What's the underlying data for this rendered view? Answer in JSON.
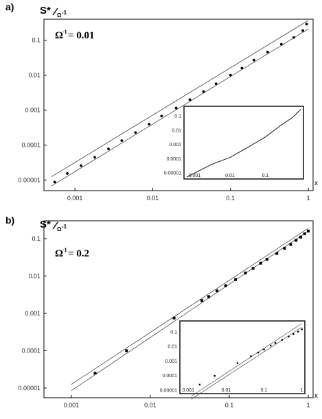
{
  "chart_data": [
    {
      "type": "scatter",
      "panel_label": "a)",
      "ylabel": "S*",
      "ylabel_sub": "Ω",
      "ylabel_sup": "-1",
      "annotation": "= 0.01",
      "annotation_symbol": "Ω",
      "annotation_sup": "-1",
      "xlabel": "x",
      "x_scale": "log",
      "y_scale": "log",
      "xlim": [
        0.0004,
        1.15
      ],
      "ylim": [
        5e-06,
        0.4
      ],
      "xticks": [
        "0.001",
        "0.01",
        "0.1",
        "1"
      ],
      "yticks": [
        "0.00001",
        "0.0001",
        "0.001",
        "0.01",
        "0.1"
      ],
      "xtick_values": [
        0.001,
        0.01,
        0.1,
        1
      ],
      "ytick_values": [
        1e-05,
        0.0001,
        0.001,
        0.01,
        0.1
      ],
      "series": [
        {
          "points": [
            [
              0.00055,
              8.8e-06
            ],
            [
              0.0008,
              1.55e-05
            ],
            [
              0.0012,
              2.6e-05
            ],
            [
              0.0018,
              4.5e-05
            ],
            [
              0.0027,
              7.8e-05
            ],
            [
              0.004,
              0.000135
            ],
            [
              0.006,
              0.00023
            ],
            [
              0.009,
              0.0004
            ],
            [
              0.013,
              0.00068
            ],
            [
              0.02,
              0.00115
            ],
            [
              0.03,
              0.002
            ],
            [
              0.045,
              0.0034
            ],
            [
              0.065,
              0.0057
            ],
            [
              0.1,
              0.01
            ],
            [
              0.14,
              0.016
            ],
            [
              0.2,
              0.027
            ],
            [
              0.3,
              0.046
            ],
            [
              0.45,
              0.077
            ],
            [
              0.65,
              0.12
            ],
            [
              0.85,
              0.19
            ],
            [
              0.95,
              0.29
            ]
          ]
        }
      ],
      "reference_lines": [
        {
          "points": [
            [
              0.0005,
              1.25e-05
            ],
            [
              1,
              0.37
            ]
          ]
        },
        {
          "points": [
            [
              0.0005,
              6.8e-06
            ],
            [
              1,
              0.21
            ]
          ]
        }
      ],
      "inset": {
        "xticks": [
          "0.001",
          "0.01",
          "0.1"
        ],
        "yticks": [
          "0.00001",
          "0.0001",
          "0.001",
          "0.01",
          "0.1"
        ],
        "xtick_values": [
          0.001,
          0.01,
          0.1
        ],
        "ytick_values": [
          1e-05,
          0.0001,
          0.001,
          0.01,
          0.1
        ],
        "xlim": [
          0.0005,
          1.2
        ],
        "ylim": [
          4e-06,
          0.5
        ],
        "series": [
          {
            "points": [
              [
                0.0006,
                5.5e-06
              ],
              [
                0.001,
                1.05e-05
              ],
              [
                0.003,
                4.2e-05
              ],
              [
                0.01,
                0.00013
              ],
              [
                0.03,
                0.0006
              ],
              [
                0.1,
                0.0035
              ],
              [
                0.3,
                0.027
              ],
              [
                0.6,
                0.085
              ],
              [
                1,
                0.3
              ]
            ]
          }
        ]
      }
    },
    {
      "type": "scatter",
      "panel_label": "b)",
      "ylabel": "S*",
      "ylabel_sub": "Ω",
      "ylabel_sup": "-1",
      "annotation": "= 0.2",
      "annotation_symbol": "Ω",
      "annotation_sup": "-1",
      "xlabel": "x",
      "x_scale": "log",
      "y_scale": "log",
      "xlim": [
        0.00045,
        1.15
      ],
      "ylim": [
        5.5e-06,
        0.3
      ],
      "xticks": [
        "0.001",
        "0.01",
        "0.1",
        "1"
      ],
      "yticks": [
        "0.00001",
        "0.0001",
        "0.001",
        "0.01",
        "0.1"
      ],
      "xtick_values": [
        0.001,
        0.01,
        0.1,
        1
      ],
      "ytick_values": [
        1e-05,
        0.0001,
        0.001,
        0.01,
        0.1
      ],
      "series": [
        {
          "points": [
            [
              0.002,
              2.5e-05
            ],
            [
              0.005,
              0.0001
            ],
            [
              0.02,
              0.00075
            ],
            [
              0.045,
              0.0022
            ],
            [
              0.055,
              0.0028
            ],
            [
              0.07,
              0.004
            ],
            [
              0.09,
              0.0055
            ],
            [
              0.12,
              0.008
            ],
            [
              0.16,
              0.012
            ],
            [
              0.2,
              0.016
            ],
            [
              0.25,
              0.022
            ],
            [
              0.3,
              0.028
            ],
            [
              0.4,
              0.04
            ],
            [
              0.5,
              0.055
            ],
            [
              0.6,
              0.07
            ],
            [
              0.7,
              0.09
            ],
            [
              0.8,
              0.11
            ],
            [
              0.9,
              0.135
            ],
            [
              1,
              0.16
            ]
          ]
        }
      ],
      "reference_lines": [
        {
          "points": [
            [
              0.001,
              1.25e-05
            ],
            [
              1,
              0.19
            ]
          ]
        },
        {
          "points": [
            [
              0.001,
              8.5e-06
            ],
            [
              1,
              0.16
            ]
          ]
        }
      ],
      "inset": {
        "xticks": [
          "0.001",
          "0.01",
          "0.1",
          "1"
        ],
        "yticks": [
          "0.00001",
          "0.0001",
          "0.001",
          "0.01",
          "0.1"
        ],
        "xtick_values": [
          0.001,
          0.01,
          0.1,
          1
        ],
        "ytick_values": [
          1e-05,
          0.0001,
          0.001,
          0.01,
          0.1
        ],
        "xlim": [
          0.0006,
          1.2
        ],
        "ylim": [
          6e-06,
          0.6
        ],
        "series": [
          {
            "points": [
              [
                0.002,
                2.5e-05
              ],
              [
                0.005,
                0.0001
              ],
              [
                0.02,
                0.00075
              ],
              [
                0.045,
                0.0022
              ],
              [
                0.07,
                0.004
              ],
              [
                0.1,
                0.0065
              ],
              [
                0.15,
                0.012
              ],
              [
                0.2,
                0.018
              ],
              [
                0.3,
                0.03
              ],
              [
                0.45,
                0.05
              ],
              [
                0.6,
                0.075
              ],
              [
                0.8,
                0.11
              ],
              [
                1,
                0.16
              ]
            ]
          }
        ],
        "reference_lines": [
          {
            "points": [
              [
                0.0012,
                4e-06
              ],
              [
                1,
                0.4
              ]
            ]
          },
          {
            "points": [
              [
                0.0012,
                2.5e-06
              ],
              [
                1,
                0.22
              ]
            ]
          }
        ]
      }
    }
  ]
}
